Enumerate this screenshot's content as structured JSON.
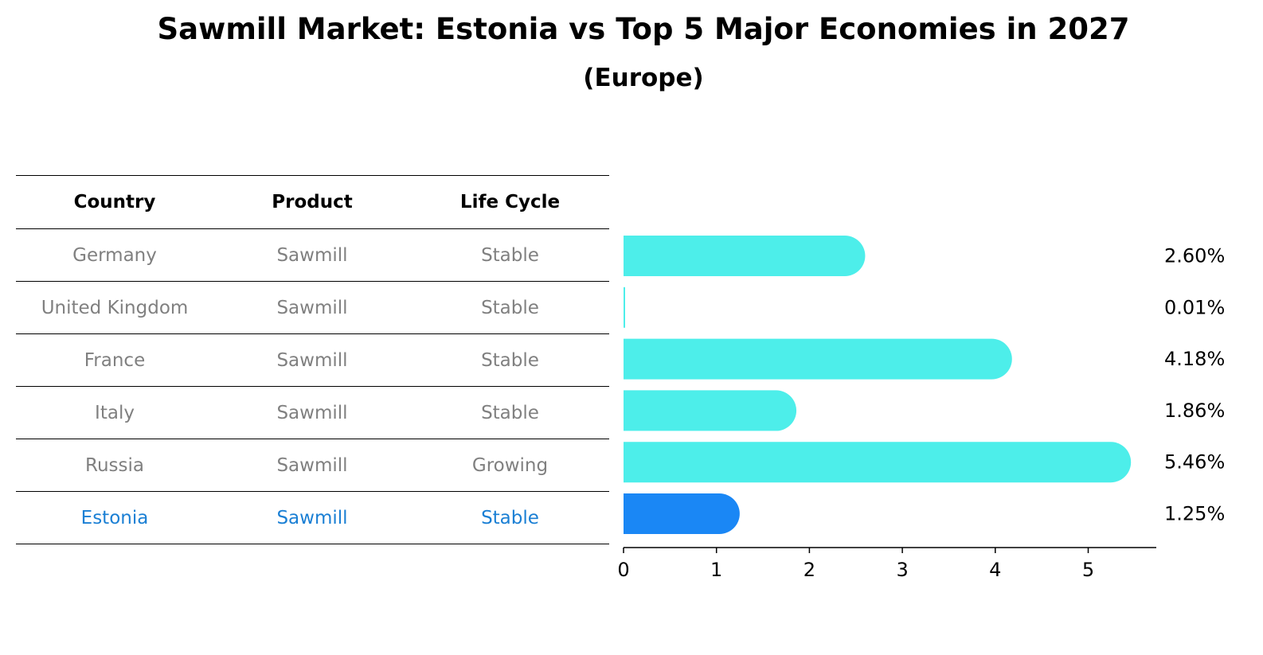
{
  "title": "Sawmill Market: Estonia vs Top 5 Major Economies in 2027",
  "subtitle": "(Europe)",
  "table": {
    "headers": [
      "Country",
      "Product",
      "Life Cycle"
    ],
    "rows": [
      {
        "country": "Germany",
        "product": "Sawmill",
        "life_cycle": "Stable"
      },
      {
        "country": "United Kingdom",
        "product": "Sawmill",
        "life_cycle": "Stable"
      },
      {
        "country": "France",
        "product": "Sawmill",
        "life_cycle": "Stable"
      },
      {
        "country": "Italy",
        "product": "Sawmill",
        "life_cycle": "Stable"
      },
      {
        "country": "Russia",
        "product": "Sawmill",
        "life_cycle": "Growing"
      },
      {
        "country": "Estonia",
        "product": "Sawmill",
        "life_cycle": "Stable"
      }
    ]
  },
  "chart_data": {
    "type": "bar",
    "orientation": "horizontal",
    "title": "Sawmill Market: Estonia vs Top 5 Major Economies in 2027",
    "subtitle": "(Europe)",
    "categories": [
      "Germany",
      "United Kingdom",
      "France",
      "Italy",
      "Russia",
      "Estonia"
    ],
    "values": [
      2.6,
      0.01,
      4.18,
      1.86,
      5.46,
      1.25
    ],
    "data_labels": [
      "2.60%",
      "0.01%",
      "4.18%",
      "1.86%",
      "5.46%",
      "1.25%"
    ],
    "xlim": [
      0,
      5.7
    ],
    "xticks": [
      0,
      1,
      2,
      3,
      4,
      5
    ],
    "grid": false,
    "highlight_category": "Estonia",
    "colors": {
      "bar": "#4deeea",
      "highlight_bar": "#1a87f5",
      "highlight_text": "#1a7fd4",
      "muted_text": "#808080"
    }
  }
}
